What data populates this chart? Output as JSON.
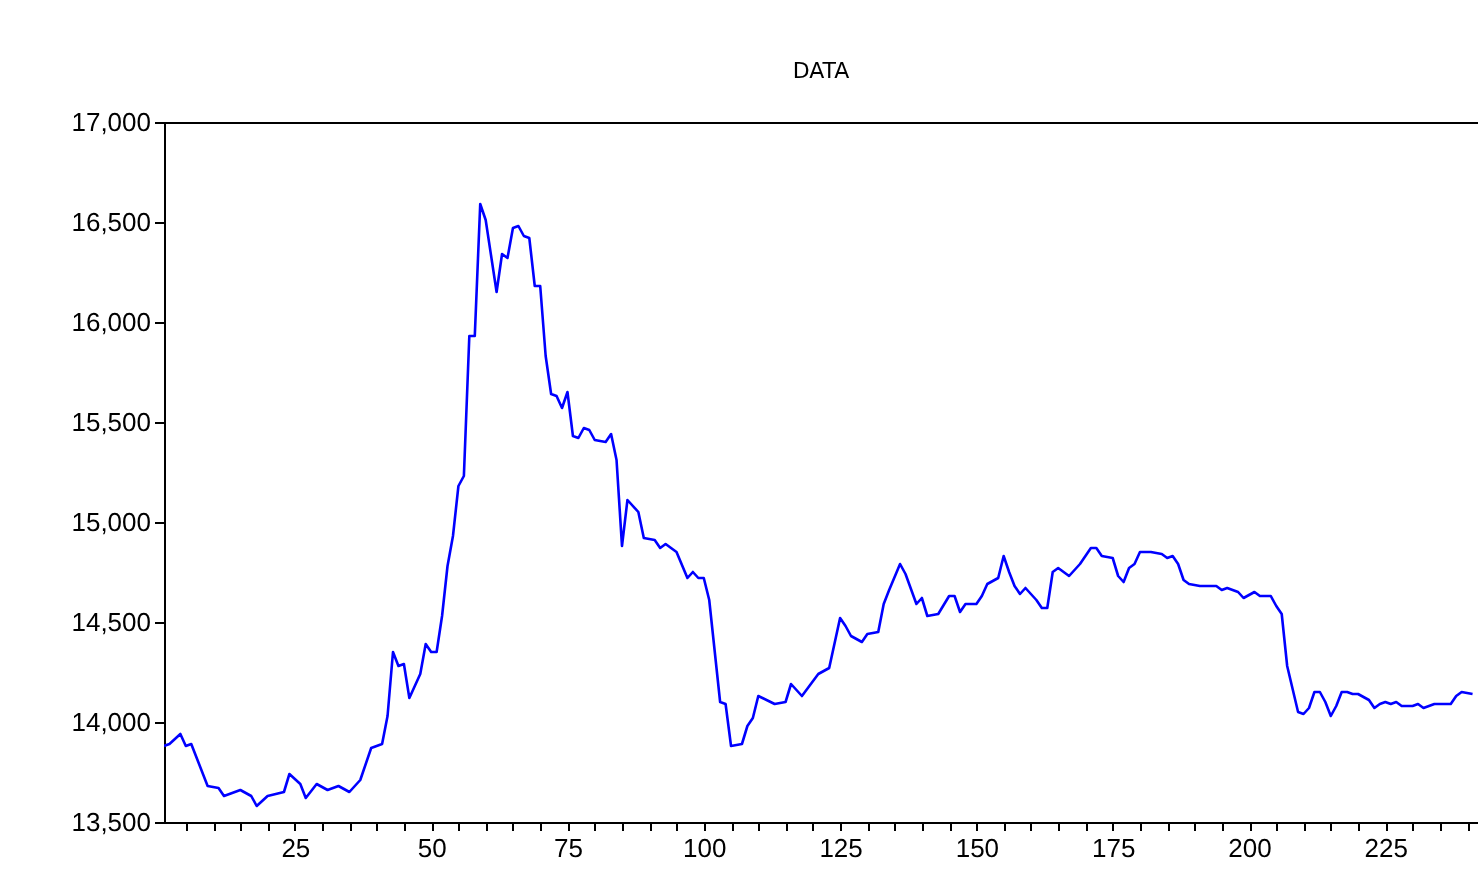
{
  "chart_data": {
    "type": "line",
    "title": "DATA",
    "x": [
      1,
      2,
      4,
      5,
      6,
      9,
      11,
      12,
      15,
      17,
      18,
      20,
      23,
      24,
      26,
      27,
      29,
      31,
      33,
      35,
      37,
      39,
      41,
      42,
      43,
      44,
      45,
      46,
      48,
      49,
      50,
      51,
      52,
      53,
      54,
      55,
      56,
      57,
      58,
      59,
      60,
      62,
      63,
      64,
      65,
      66,
      67,
      68,
      69,
      70,
      71,
      72,
      73,
      74,
      75,
      76,
      77,
      78,
      79,
      80,
      82,
      83,
      84,
      85,
      86,
      88,
      89,
      91,
      92,
      93,
      95,
      97,
      98,
      99,
      100,
      101,
      103,
      104,
      105,
      107,
      108,
      109,
      110,
      113,
      115,
      116,
      118,
      121,
      123,
      125,
      126,
      127,
      129,
      130,
      132,
      133,
      134,
      136,
      137,
      139,
      140,
      141,
      143,
      145,
      146,
      147,
      148,
      150,
      151,
      152,
      154,
      155,
      156,
      157,
      158,
      159,
      161,
      162,
      163,
      164,
      165,
      167,
      169,
      171,
      172,
      173,
      175,
      176,
      177,
      178,
      179,
      180,
      182,
      184,
      185,
      186,
      187,
      188,
      189,
      191,
      194,
      195,
      196,
      198,
      199,
      201,
      202,
      204,
      205,
      206,
      207,
      209,
      210,
      211,
      212,
      213,
      214,
      215,
      216,
      217,
      218,
      219,
      220,
      222,
      223,
      224,
      225,
      226,
      227,
      228,
      230,
      231,
      232,
      233,
      234,
      236,
      237,
      238,
      239,
      241
    ],
    "series": [
      {
        "color": "#0000ff",
        "values": [
          13880,
          13890,
          13940,
          13880,
          13890,
          13680,
          13670,
          13630,
          13660,
          13630,
          13580,
          13630,
          13650,
          13740,
          13690,
          13620,
          13690,
          13660,
          13680,
          13650,
          13710,
          13870,
          13890,
          14030,
          14350,
          14280,
          14290,
          14120,
          14240,
          14390,
          14350,
          14350,
          14530,
          14780,
          14930,
          15180,
          15230,
          15930,
          15930,
          16590,
          16510,
          16150,
          16340,
          16320,
          16470,
          16480,
          16430,
          16420,
          16180,
          16180,
          15830,
          15640,
          15630,
          15570,
          15650,
          15430,
          15420,
          15470,
          15460,
          15410,
          15400,
          15440,
          15310,
          14880,
          15110,
          15050,
          14920,
          14910,
          14870,
          14890,
          14850,
          14720,
          14750,
          14720,
          14720,
          14610,
          14100,
          14090,
          13880,
          13890,
          13980,
          14020,
          14130,
          14090,
          14100,
          14190,
          14130,
          14240,
          14270,
          14520,
          14480,
          14430,
          14400,
          14440,
          14450,
          14590,
          14660,
          14790,
          14740,
          14590,
          14620,
          14530,
          14540,
          14630,
          14630,
          14550,
          14590,
          14590,
          14630,
          14690,
          14720,
          14830,
          14750,
          14680,
          14640,
          14670,
          14610,
          14570,
          14570,
          14750,
          14770,
          14730,
          14790,
          14870,
          14870,
          14830,
          14820,
          14730,
          14700,
          14770,
          14790,
          14850,
          14850,
          14840,
          14820,
          14830,
          14790,
          14710,
          14690,
          14680,
          14680,
          14660,
          14670,
          14650,
          14620,
          14650,
          14630,
          14630,
          14580,
          14540,
          14280,
          14050,
          14040,
          14070,
          14150,
          14150,
          14100,
          14030,
          14080,
          14150,
          14150,
          14140,
          14140,
          14110,
          14070,
          14090,
          14100,
          14090,
          14100,
          14080,
          14080,
          14090,
          14070,
          14080,
          14090,
          14090,
          14090,
          14130,
          14150,
          14140
        ]
      }
    ],
    "xlim": [
      1,
      242
    ],
    "xticks": [
      {
        "value": 5,
        "label": null
      },
      {
        "value": 10,
        "label": null
      },
      {
        "value": 15,
        "label": null
      },
      {
        "value": 20,
        "label": null
      },
      25,
      {
        "value": 30,
        "label": null
      },
      {
        "value": 35,
        "label": null
      },
      {
        "value": 40,
        "label": null
      },
      {
        "value": 45,
        "label": null
      },
      50,
      {
        "value": 55,
        "label": null
      },
      {
        "value": 60,
        "label": null
      },
      {
        "value": 65,
        "label": null
      },
      {
        "value": 70,
        "label": null
      },
      75,
      {
        "value": 80,
        "label": null
      },
      {
        "value": 85,
        "label": null
      },
      {
        "value": 90,
        "label": null
      },
      {
        "value": 95,
        "label": null
      },
      100,
      {
        "value": 105,
        "label": null
      },
      {
        "value": 110,
        "label": null
      },
      {
        "value": 115,
        "label": null
      },
      {
        "value": 120,
        "label": null
      },
      125,
      {
        "value": 130,
        "label": null
      },
      {
        "value": 135,
        "label": null
      },
      {
        "value": 140,
        "label": null
      },
      {
        "value": 145,
        "label": null
      },
      150,
      {
        "value": 155,
        "label": null
      },
      {
        "value": 160,
        "label": null
      },
      {
        "value": 165,
        "label": null
      },
      {
        "value": 170,
        "label": null
      },
      175,
      {
        "value": 180,
        "label": null
      },
      {
        "value": 185,
        "label": null
      },
      {
        "value": 190,
        "label": null
      },
      {
        "value": 195,
        "label": null
      },
      200,
      {
        "value": 205,
        "label": null
      },
      {
        "value": 210,
        "label": null
      },
      {
        "value": 215,
        "label": null
      },
      {
        "value": 220,
        "label": null
      },
      225,
      {
        "value": 230,
        "label": null
      },
      {
        "value": 235,
        "label": null
      },
      {
        "value": 240,
        "label": null
      }
    ],
    "ylim": [
      13500,
      17000
    ],
    "yticks": [
      {
        "value": 13500,
        "label": "13,500"
      },
      {
        "value": 14000,
        "label": "14,000"
      },
      {
        "value": 14500,
        "label": "14,500"
      },
      {
        "value": 15000,
        "label": "15,000"
      },
      {
        "value": 15500,
        "label": "15,500"
      },
      {
        "value": 16000,
        "label": "16,000"
      },
      {
        "value": 16500,
        "label": "16,500"
      },
      {
        "value": 17000,
        "label": "17,000"
      }
    ],
    "grid": false
  }
}
